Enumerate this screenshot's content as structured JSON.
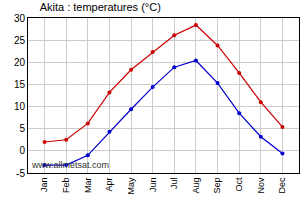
{
  "chart_data": {
    "type": "line",
    "title": "Akita : temperatures (°C)",
    "categories": [
      "Jan",
      "Feb",
      "Mar",
      "Apr",
      "May",
      "Jun",
      "Jul",
      "Aug",
      "Sep",
      "Oct",
      "Nov",
      "Dec"
    ],
    "series": [
      {
        "color": "#cc0000",
        "marker": "circle",
        "values": [
          2.0,
          2.5,
          6.2,
          13.2,
          18.3,
          22.3,
          26.1,
          28.4,
          23.8,
          17.6,
          11.0,
          5.4
        ]
      },
      {
        "color": "#0000cc",
        "marker": "circle",
        "values": [
          -3.2,
          -3.2,
          -1.0,
          4.3,
          9.4,
          14.4,
          18.9,
          20.4,
          15.3,
          8.5,
          3.2,
          -0.6
        ]
      }
    ],
    "ylim": [
      -5,
      30
    ],
    "yticks": [
      -5,
      0,
      5,
      10,
      15,
      20,
      25,
      30
    ],
    "grid": true,
    "annotations": [
      {
        "text": "www.allmetsat.com"
      }
    ]
  }
}
